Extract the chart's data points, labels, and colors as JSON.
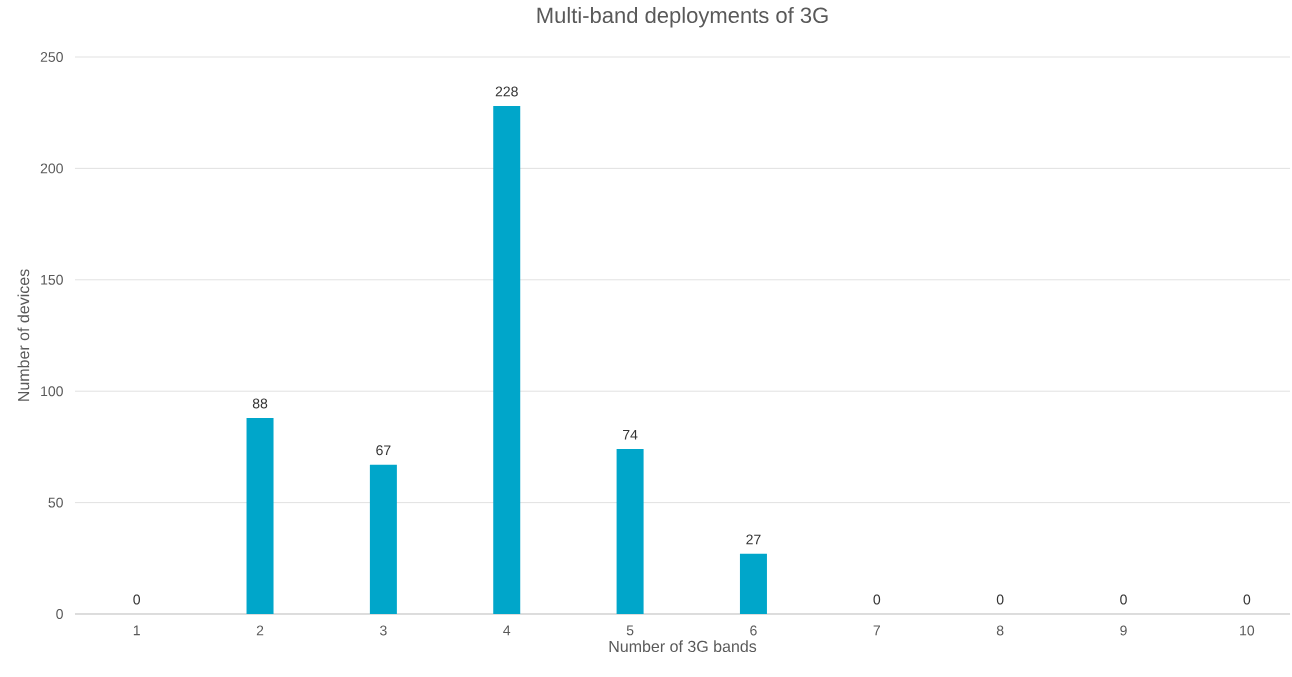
{
  "chart_data": {
    "type": "bar",
    "title": "Multi-band deployments of 3G",
    "xlabel": "Number of 3G bands",
    "ylabel": "Number of devices",
    "categories": [
      "1",
      "2",
      "3",
      "4",
      "5",
      "6",
      "7",
      "8",
      "9",
      "10"
    ],
    "values": [
      0,
      88,
      67,
      228,
      74,
      27,
      0,
      0,
      0,
      0
    ],
    "color": "#00a6ca",
    "ylim": [
      0,
      250
    ],
    "yticks": [
      0,
      50,
      100,
      150,
      200,
      250
    ],
    "grid": "y",
    "data_labels": true
  }
}
